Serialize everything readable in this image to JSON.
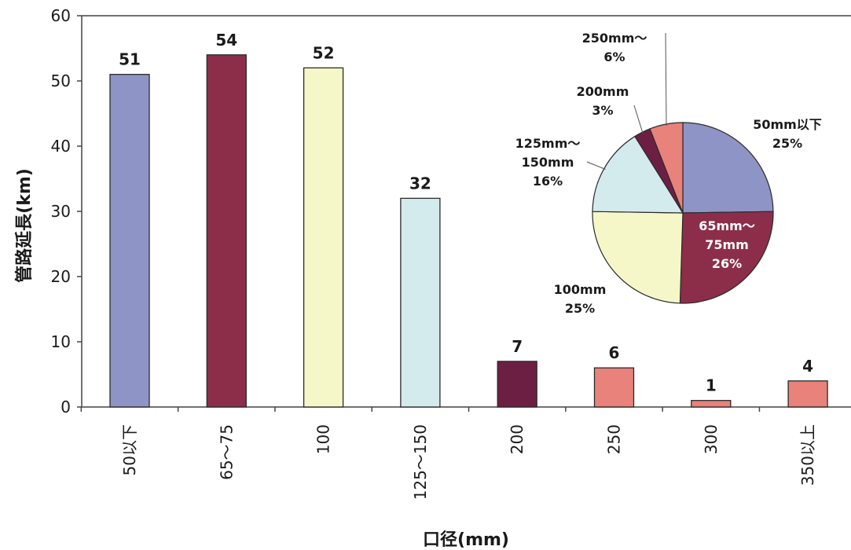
{
  "chart_data": [
    {
      "type": "bar",
      "title": "",
      "xlabel": "口径(mm)",
      "ylabel": "管路延長(km)",
      "ylim": [
        0,
        60
      ],
      "yticks": [
        0,
        10,
        20,
        30,
        40,
        50,
        60
      ],
      "grid": false,
      "categories": [
        "50以下",
        "65～75",
        "100",
        "125～150",
        "200",
        "250",
        "300",
        "350以上"
      ],
      "values": [
        51,
        54,
        52,
        32,
        7,
        6,
        1,
        4
      ],
      "value_labels": [
        "51",
        "54",
        "52",
        "32",
        "7",
        "6",
        "1",
        "4"
      ],
      "colors": [
        "#8f94c6",
        "#8c2e4a",
        "#f6f7c8",
        "#d4ebee",
        "#6d1f43",
        "#e8827a",
        "#e8827a",
        "#e8827a"
      ]
    },
    {
      "type": "pie",
      "title": "",
      "legend": "none",
      "slices": [
        {
          "label_lines": [
            "50mm以下",
            "25%"
          ],
          "value": 25,
          "color": "#8f94c6",
          "label_color": "#1a1a1a"
        },
        {
          "label_lines": [
            "65mm～",
            "75mm",
            "26%"
          ],
          "value": 26,
          "color": "#8c2e4a",
          "label_color": "#ffffff"
        },
        {
          "label_lines": [
            "100mm",
            "25%"
          ],
          "value": 25,
          "color": "#f6f7c8",
          "label_color": "#1a1a1a"
        },
        {
          "label_lines": [
            "125mm～",
            "150mm",
            "16%"
          ],
          "value": 16,
          "color": "#d4ebee",
          "label_color": "#1a1a1a"
        },
        {
          "label_lines": [
            "200mm",
            "3%"
          ],
          "value": 3,
          "color": "#6d1f43",
          "label_color": "#1a1a1a"
        },
        {
          "label_lines": [
            "250mm～",
            "6%"
          ],
          "value": 6,
          "color": "#e8827a",
          "label_color": "#1a1a1a"
        }
      ]
    }
  ]
}
